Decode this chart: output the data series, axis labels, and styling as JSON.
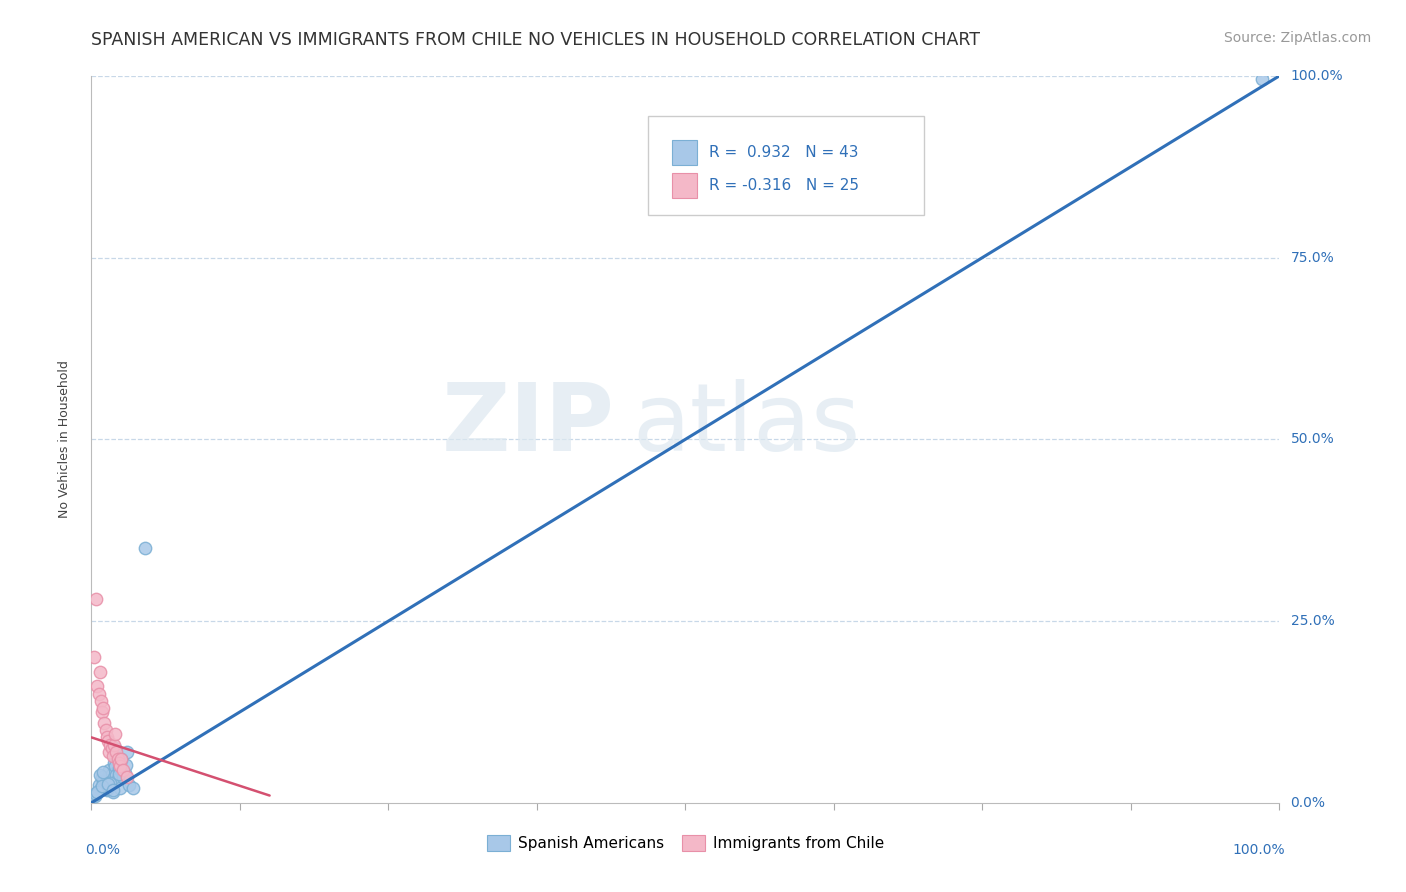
{
  "title": "SPANISH AMERICAN VS IMMIGRANTS FROM CHILE NO VEHICLES IN HOUSEHOLD CORRELATION CHART",
  "source": "Source: ZipAtlas.com",
  "ylabel": "No Vehicles in Household",
  "blue_R": "0.932",
  "blue_N": "43",
  "pink_R": "-0.316",
  "pink_N": "25",
  "blue_color": "#a8c8e8",
  "pink_color": "#f4b8c8",
  "blue_edge": "#7bafd4",
  "pink_edge": "#e890a8",
  "regression_blue_color": "#3070b8",
  "regression_pink_color": "#d45070",
  "watermark_top": "ZIP",
  "watermark_bottom": "atlas",
  "background_color": "#ffffff",
  "grid_color": "#c8d8e8",
  "blue_scatter_x": [
    0.3,
    0.5,
    0.6,
    0.8,
    0.9,
    1.0,
    1.1,
    1.2,
    1.3,
    1.4,
    1.5,
    1.6,
    1.7,
    1.8,
    1.9,
    2.0,
    2.1,
    2.2,
    2.3,
    2.4,
    2.5,
    2.6,
    2.7,
    2.8,
    2.9,
    3.0,
    3.2,
    3.5,
    0.4,
    0.7,
    1.0,
    1.3,
    1.6,
    2.0,
    2.5,
    0.5,
    0.9,
    1.4,
    1.8,
    2.3,
    4.5,
    2.0,
    98.5
  ],
  "blue_scatter_y": [
    1.0,
    1.5,
    2.5,
    2.0,
    3.5,
    3.0,
    2.2,
    2.8,
    1.8,
    3.2,
    4.5,
    2.5,
    4.0,
    1.5,
    5.5,
    5.0,
    3.8,
    3.3,
    4.8,
    2.1,
    5.8,
    4.2,
    3.6,
    4.1,
    5.2,
    7.0,
    2.4,
    2.1,
    1.2,
    3.8,
    4.2,
    1.9,
    2.7,
    6.5,
    6.0,
    1.5,
    2.3,
    2.6,
    1.7,
    3.9,
    35.0,
    7.5,
    99.5
  ],
  "pink_scatter_x": [
    0.2,
    0.4,
    0.5,
    0.6,
    0.7,
    0.8,
    0.9,
    1.0,
    1.1,
    1.2,
    1.3,
    1.4,
    1.5,
    1.6,
    1.7,
    1.8,
    1.9,
    2.0,
    2.1,
    2.2,
    2.3,
    2.4,
    2.5,
    2.7,
    3.0
  ],
  "pink_scatter_y": [
    20.0,
    28.0,
    16.0,
    15.0,
    18.0,
    14.0,
    12.5,
    13.0,
    11.0,
    10.0,
    9.0,
    8.5,
    7.0,
    8.0,
    7.5,
    6.5,
    8.0,
    9.5,
    7.0,
    6.0,
    5.5,
    5.0,
    6.0,
    4.5,
    3.5
  ],
  "marker_size": 80,
  "title_fontsize": 12.5,
  "source_fontsize": 10,
  "axis_label_fontsize": 9,
  "tick_fontsize": 10,
  "legend_fontsize": 11,
  "ytick_values": [
    0,
    25,
    50,
    75,
    100
  ],
  "ytick_labels": [
    "0.0%",
    "25.0%",
    "50.0%",
    "75.0%",
    "100.0%"
  ],
  "xtick_values": [
    0,
    12.5,
    25,
    37.5,
    50,
    62.5,
    75,
    87.5,
    100
  ]
}
